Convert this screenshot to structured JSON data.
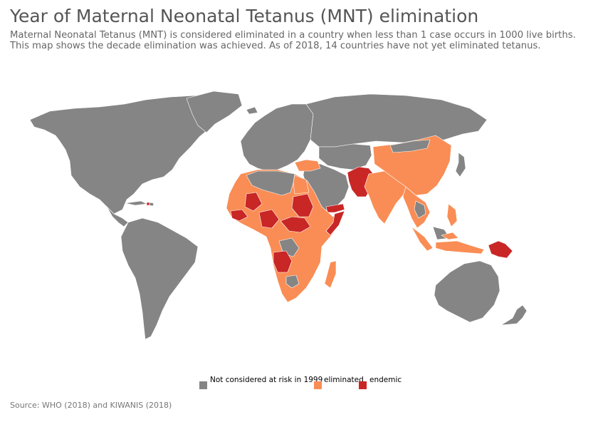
{
  "header": {
    "title": "Year of Maternal Neonatal Tetanus (MNT) elimination",
    "subtitle": "Maternal Neonatal Tetanus (MNT) is considered eliminated in a country when less than 1 case occurs in 1000 live births. This map shows the decade elimination was achieved. As of 2018, 14 countries have not yet eliminated tetanus."
  },
  "legend": {
    "items": [
      {
        "label": "Not considered at risk in 1999",
        "color": "#858585"
      },
      {
        "label": "eliminated",
        "color": "#f98d55"
      },
      {
        "label": "endemic",
        "color": "#c92626"
      }
    ]
  },
  "footer": {
    "source": "Source: WHO (2018) and KIWANIS (2018)"
  },
  "colors": {
    "gray": "#858585",
    "orange": "#f98d55",
    "red": "#c92626"
  }
}
